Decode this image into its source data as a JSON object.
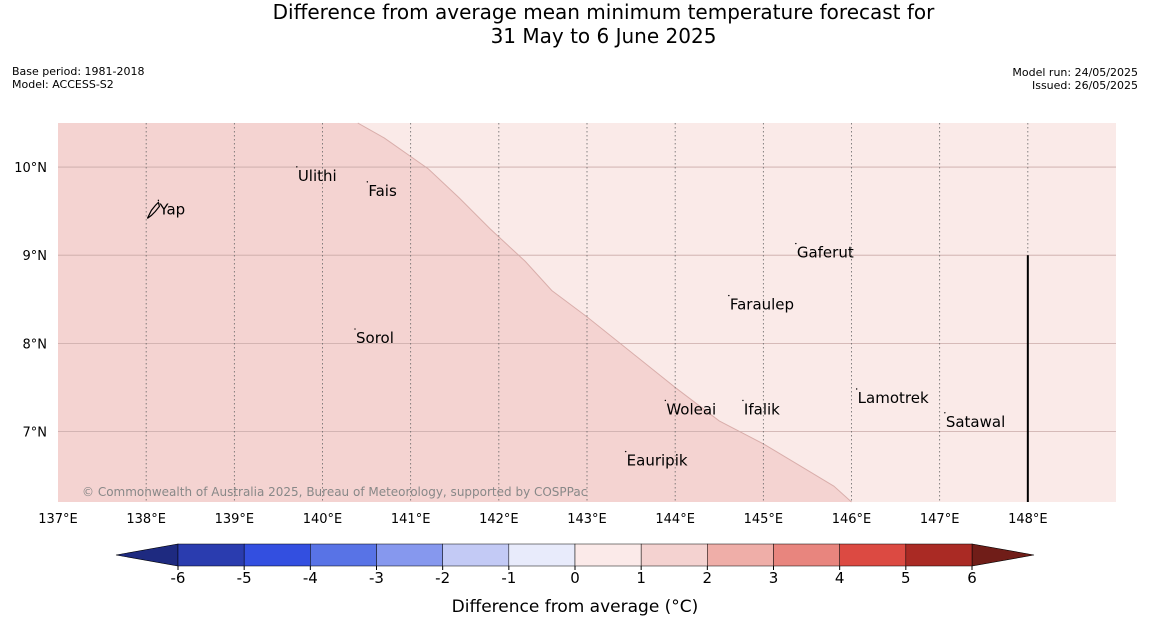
{
  "title": {
    "line1": "Difference from average mean minimum temperature forecast for",
    "line2": "31 May to 6 June 2025"
  },
  "meta_left": {
    "base_period": "Base period: 1981-2018",
    "model": "Model: ACCESS-S2"
  },
  "meta_right": {
    "model_run": "Model run: 24/05/2025",
    "issued": "Issued: 26/05/2025"
  },
  "map": {
    "extent": {
      "lon": [
        137.0,
        149.0
      ],
      "lat": [
        6.2,
        10.5
      ]
    },
    "lon_ticks": [
      {
        "value": 137,
        "label": "137°E"
      },
      {
        "value": 138,
        "label": "138°E"
      },
      {
        "value": 139,
        "label": "139°E"
      },
      {
        "value": 140,
        "label": "140°E"
      },
      {
        "value": 141,
        "label": "141°E"
      },
      {
        "value": 142,
        "label": "142°E"
      },
      {
        "value": 143,
        "label": "143°E"
      },
      {
        "value": 144,
        "label": "144°E"
      },
      {
        "value": 145,
        "label": "145°E"
      },
      {
        "value": 146,
        "label": "146°E"
      },
      {
        "value": 147,
        "label": "147°E"
      },
      {
        "value": 148,
        "label": "148°E"
      }
    ],
    "lat_ticks": [
      {
        "value": 10,
        "label": "10°N"
      },
      {
        "value": 9,
        "label": "9°N"
      },
      {
        "value": 8,
        "label": "8°N"
      },
      {
        "value": 7,
        "label": "7°N"
      }
    ],
    "region_color_1_2": "#f4d3d1",
    "region_color_0_1": "#faeae8",
    "boundary": [
      [
        140.4,
        10.5
      ],
      [
        140.7,
        10.33
      ],
      [
        141.2,
        9.98
      ],
      [
        141.55,
        9.65
      ],
      [
        141.9,
        9.3
      ],
      [
        142.3,
        8.93
      ],
      [
        142.6,
        8.6
      ],
      [
        143.0,
        8.3
      ],
      [
        143.5,
        7.9
      ],
      [
        144.0,
        7.5
      ],
      [
        144.5,
        7.12
      ],
      [
        145.0,
        6.86
      ],
      [
        145.4,
        6.62
      ],
      [
        145.8,
        6.38
      ],
      [
        146.0,
        6.2
      ]
    ],
    "black_line": {
      "lon": 148.0,
      "lat_from": 6.2,
      "lat_to": 9.0
    },
    "places": [
      {
        "name": "Yap",
        "lon": 138.15,
        "lat": 9.52
      },
      {
        "name": "Ulithi",
        "lon": 139.72,
        "lat": 9.9
      },
      {
        "name": "Fais",
        "lon": 140.52,
        "lat": 9.73
      },
      {
        "name": "Gaferut",
        "lon": 145.38,
        "lat": 9.03
      },
      {
        "name": "Faraulep",
        "lon": 144.62,
        "lat": 8.44
      },
      {
        "name": "Sorol",
        "lon": 140.38,
        "lat": 8.06
      },
      {
        "name": "Lamotrek",
        "lon": 146.07,
        "lat": 7.38
      },
      {
        "name": "Satawal",
        "lon": 147.07,
        "lat": 7.11
      },
      {
        "name": "Woleai",
        "lon": 143.9,
        "lat": 7.25
      },
      {
        "name": "Ifalik",
        "lon": 144.78,
        "lat": 7.25
      },
      {
        "name": "Eauripik",
        "lon": 143.45,
        "lat": 6.67
      }
    ],
    "copyright": "© Commonwealth of Australia 2025, Bureau of Meteorology, supported by COSPPac"
  },
  "colorbar": {
    "label": "Difference from average (°C)",
    "ticks": [
      "-6",
      "-5",
      "-4",
      "-3",
      "-2",
      "-1",
      "0",
      "1",
      "2",
      "3",
      "4",
      "5",
      "6"
    ],
    "colors": [
      "#2a3caf",
      "#334fe0",
      "#5873e6",
      "#8698ee",
      "#c3caf5",
      "#e8ebfb",
      "#fbeae9",
      "#f4d2d0",
      "#efaea8",
      "#e8857e",
      "#dc4a42",
      "#aa2a24"
    ],
    "under_color": "#1e2a80",
    "over_color": "#701d18"
  }
}
